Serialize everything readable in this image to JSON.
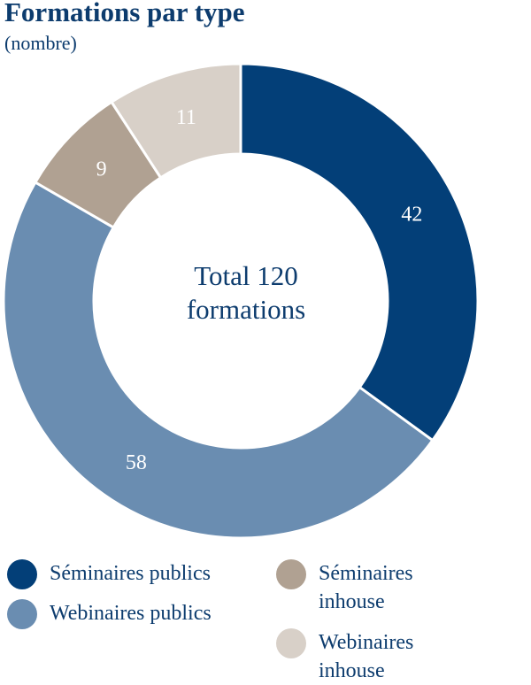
{
  "chart_data": {
    "type": "donut",
    "title": "Formations par type",
    "subtitle": "(nombre)",
    "center_label": [
      "Total 120",
      "formations"
    ],
    "categories": [
      "Séminaires publics",
      "Webinaires publics",
      "Séminaires inhouse",
      "Webinaires inhouse"
    ],
    "values": [
      42,
      58,
      9,
      11
    ],
    "colors": [
      "#033f78",
      "#6a8db1",
      "#b0a192",
      "#d8d0c8"
    ]
  }
}
